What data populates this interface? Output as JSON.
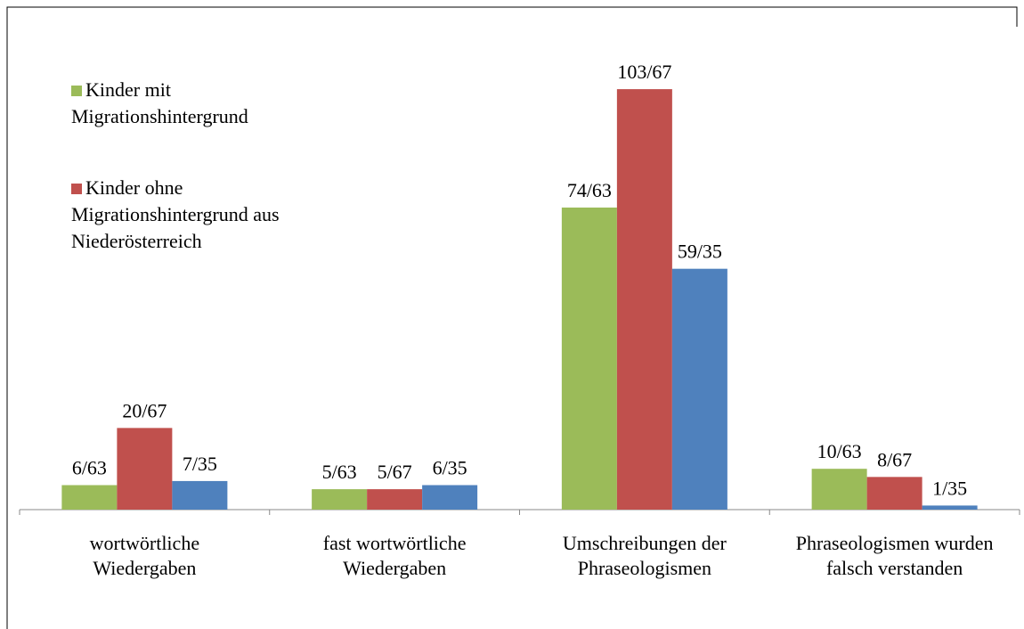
{
  "chart_data": {
    "type": "bar",
    "categories": [
      "wortwörtliche Wiedergaben",
      "fast wortwörtliche Wiedergaben",
      "Umschreibungen der Phraseologismen",
      "Phraseologismen wurden falsch verstanden"
    ],
    "series": [
      {
        "name": "Kinder mit Migrationshintergrund",
        "color": "#9bbb59",
        "values": [
          6,
          5,
          74,
          10
        ],
        "value_labels": [
          "6/63",
          "5/63",
          "74/63",
          "10/63"
        ]
      },
      {
        "name": "Kinder ohne Migrationshintergrund aus Niederösterreich",
        "color": "#c0504d",
        "values": [
          20,
          5,
          103,
          8
        ],
        "value_labels": [
          "20/67",
          "5/67",
          "103/67",
          "8/67"
        ]
      },
      {
        "color": "#4f81bd",
        "values": [
          7,
          6,
          59,
          1
        ],
        "value_labels": [
          "7/35",
          "6/35",
          "59/35",
          "1/35"
        ]
      }
    ],
    "ylim": [
      0,
      110
    ],
    "legend": "top-left"
  }
}
